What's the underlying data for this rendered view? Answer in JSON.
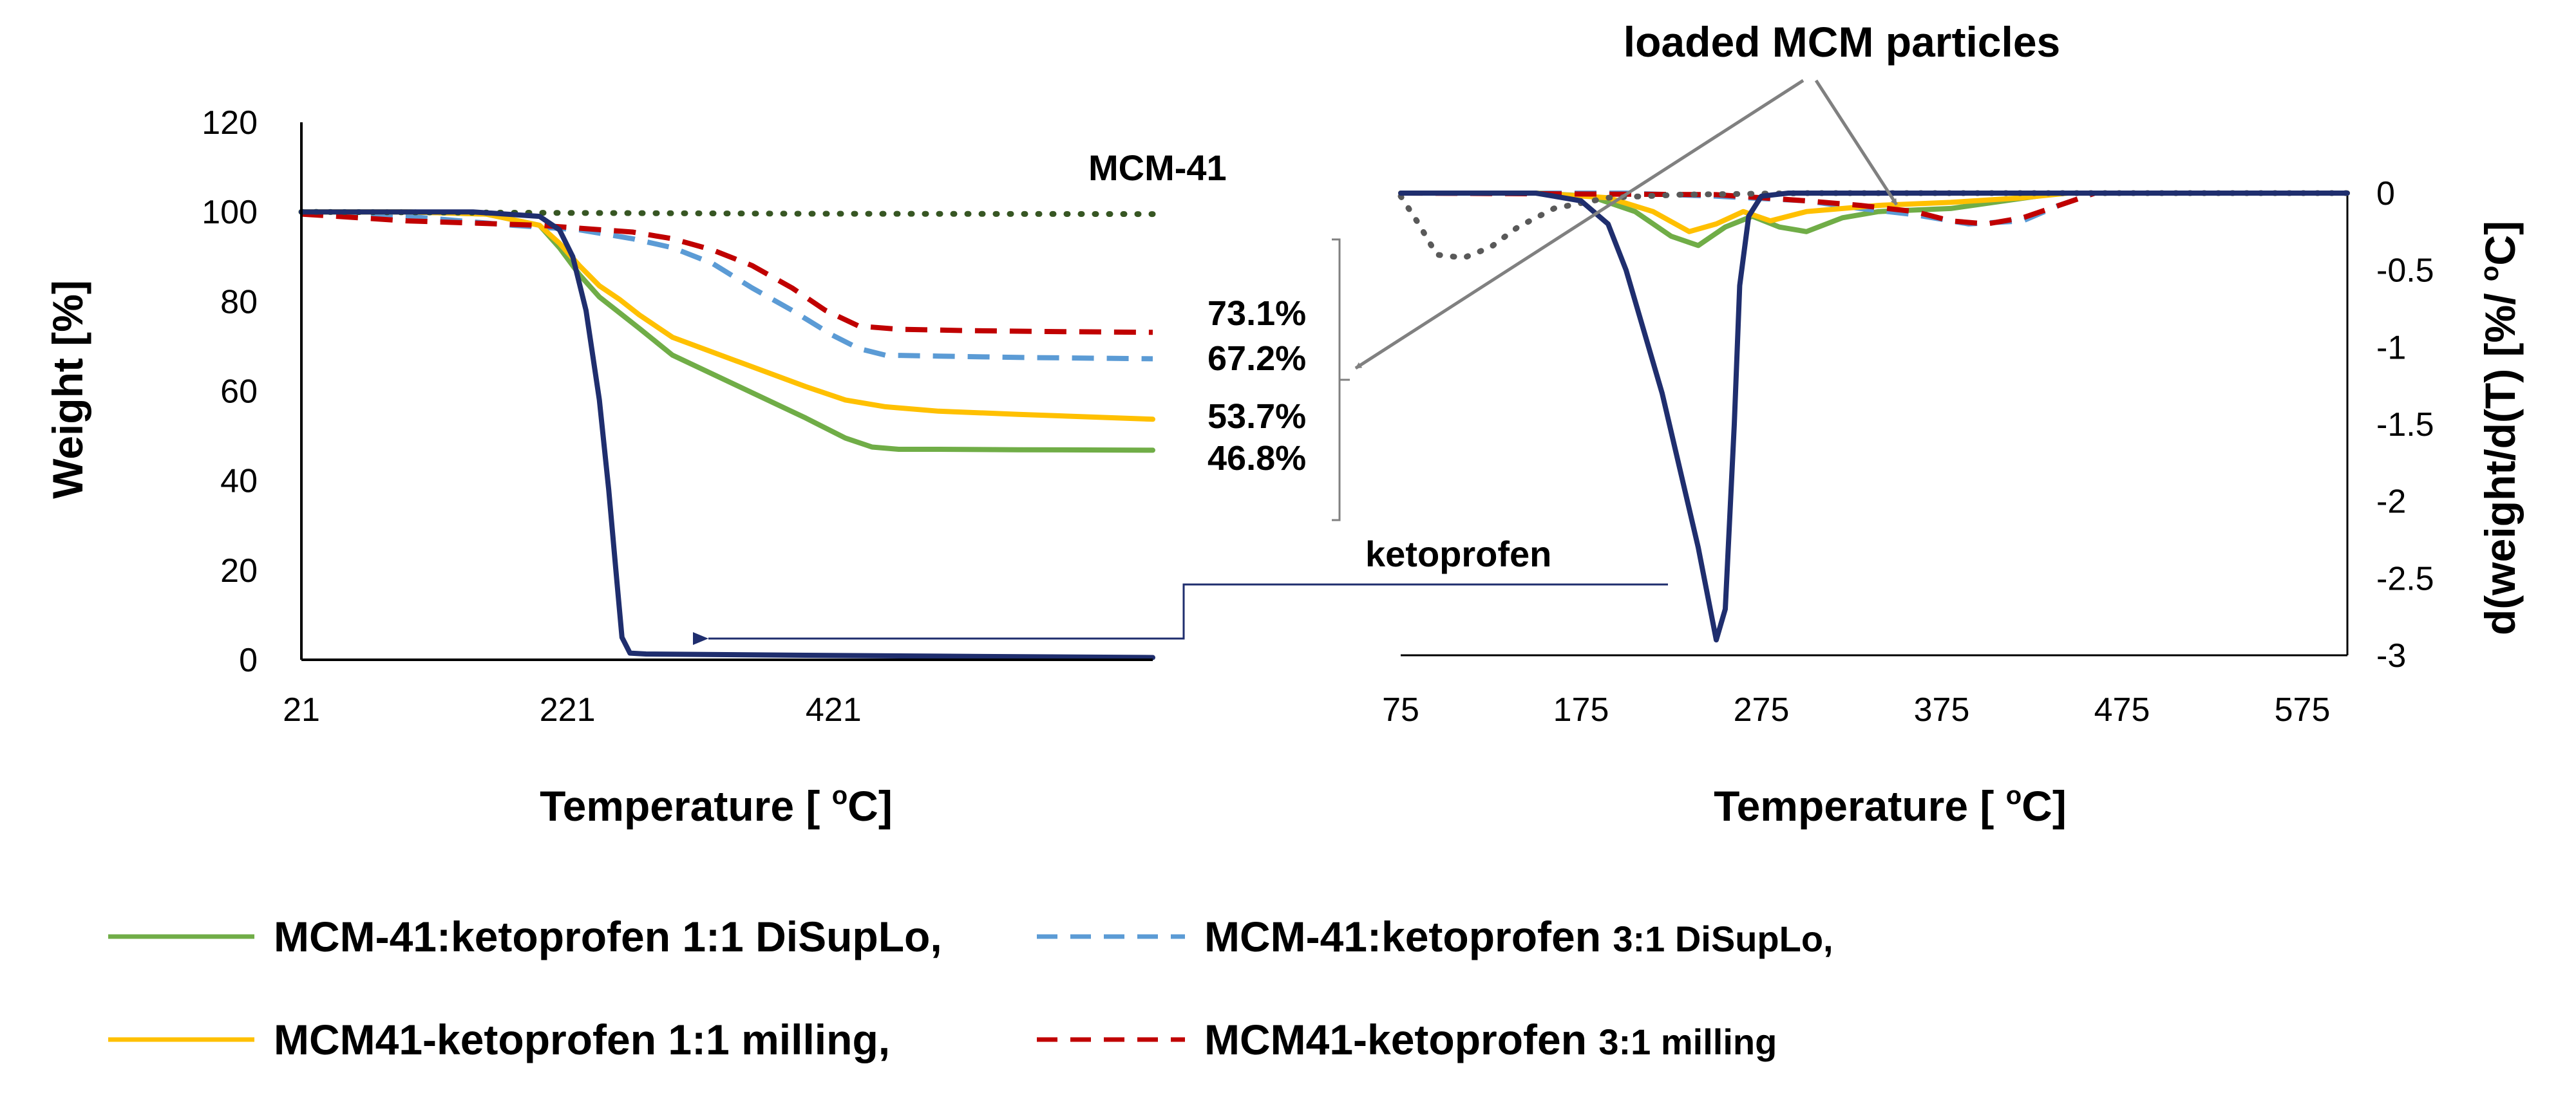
{
  "chart_data": [
    {
      "type": "line",
      "panel": "left",
      "xlabel": "Temperature [ oC]",
      "xlabel_main": "Temperature [ ",
      "xlabel_sup": "o",
      "xlabel_end": "C]",
      "ylabel": "Weight [%]",
      "xlim": [
        21,
        661
      ],
      "ylim": [
        0,
        120
      ],
      "xticks": [
        "21",
        "221",
        "421"
      ],
      "xtick_values": [
        21,
        221,
        421
      ],
      "yticks": [
        "0",
        "20",
        "40",
        "60",
        "80",
        "100",
        "120"
      ],
      "ytick_values": [
        0,
        20,
        40,
        60,
        80,
        100,
        120
      ],
      "series": [
        {
          "name": "MCM-41:ketoprofen 1:1 DiSupLo",
          "color": "#70ad47",
          "dash": "solid",
          "x": [
            21,
            100,
            160,
            200,
            215,
            230,
            245,
            260,
            275,
            300,
            350,
            400,
            430,
            450,
            470,
            500,
            560,
            661
          ],
          "y": [
            100,
            100,
            99.5,
            97,
            92,
            86,
            81,
            77.5,
            74,
            68,
            61,
            54,
            49.5,
            47.5,
            47,
            47,
            46.9,
            46.8
          ]
        },
        {
          "name": "MCM-41:ketoprofen 3:1 DiSupLo",
          "color": "#5b9bd5",
          "dash": "dashed",
          "x": [
            21,
            100,
            180,
            230,
            270,
            300,
            330,
            360,
            390,
            420,
            440,
            460,
            500,
            560,
            661
          ],
          "y": [
            100,
            99,
            97,
            96,
            94,
            92,
            88.5,
            83,
            78,
            72.5,
            69.5,
            68,
            67.8,
            67.5,
            67.2
          ]
        },
        {
          "name": "MCM41-ketoprofen 1:1 milling",
          "color": "#ffc000",
          "dash": "solid",
          "x": [
            21,
            100,
            160,
            200,
            215,
            230,
            245,
            260,
            275,
            300,
            350,
            400,
            430,
            460,
            500,
            560,
            661
          ],
          "y": [
            100,
            100,
            99.5,
            97,
            93,
            88,
            83.5,
            80.5,
            77,
            72,
            66.5,
            61,
            58,
            56.5,
            55.5,
            54.8,
            53.7
          ]
        },
        {
          "name": "MCM41-ketoprofen 3:1 milling",
          "color": "#c00000",
          "dash": "dashed",
          "x": [
            21,
            100,
            200,
            270,
            300,
            330,
            360,
            390,
            415,
            440,
            470,
            520,
            580,
            661
          ],
          "y": [
            99.5,
            98,
            97,
            95.5,
            94,
            91.5,
            88,
            83,
            78,
            74.5,
            73.8,
            73.5,
            73.3,
            73.1
          ]
        },
        {
          "name": "MCM-41",
          "color": "#375623",
          "dash": "dotted",
          "x": [
            21,
            200,
            400,
            661
          ],
          "y": [
            100,
            99.8,
            99.6,
            99.5
          ]
        },
        {
          "name": "ketoprofen",
          "color": "#1f2e6e",
          "dash": "solid",
          "x": [
            21,
            150,
            200,
            215,
            225,
            235,
            245,
            252,
            258,
            262,
            268,
            280,
            400,
            500,
            661
          ],
          "y": [
            100,
            100,
            99,
            96,
            90,
            78,
            58,
            38,
            18,
            5,
            1.5,
            1.3,
            1,
            0.8,
            0.5
          ]
        }
      ],
      "annotations": {
        "mcm41_label": "MCM-41",
        "ketoprofen_label": "ketoprofen",
        "residues": [
          "73.1%",
          "67.2%",
          "53.7%",
          "46.8%"
        ]
      }
    },
    {
      "type": "line",
      "panel": "right",
      "xlabel": "Temperature [ oC]",
      "xlabel_main": "Temperature [ ",
      "xlabel_sup": "o",
      "xlabel_end": "C]",
      "ylabel": "d(weight/d(T) [%/ oC]",
      "ylabel_main": "d(weight/d(T) [%/ ",
      "ylabel_sup": "o",
      "ylabel_end": "C]",
      "xlim": [
        75,
        600
      ],
      "ylim": [
        -3,
        0
      ],
      "xticks": [
        "75",
        "175",
        "275",
        "375",
        "475",
        "575"
      ],
      "xtick_values": [
        75,
        175,
        275,
        375,
        475,
        575
      ],
      "yticks": [
        "0",
        "-0.5",
        "-1",
        "-1.5",
        "-2",
        "-2.5",
        "-3"
      ],
      "ytick_values": [
        0,
        -0.5,
        -1,
        -1.5,
        -2,
        -2.5,
        -3
      ],
      "series": [
        {
          "name": "MCM-41:ketoprofen 1:1 DiSupLo",
          "color": "#70ad47",
          "dash": "solid",
          "x": [
            75,
            150,
            180,
            205,
            225,
            240,
            255,
            270,
            285,
            300,
            320,
            340,
            380,
            440,
            600
          ],
          "y": [
            0,
            0,
            -0.02,
            -0.12,
            -0.28,
            -0.34,
            -0.22,
            -0.15,
            -0.22,
            -0.25,
            -0.16,
            -0.12,
            -0.1,
            0,
            0
          ]
        },
        {
          "name": "MCM-41:ketoprofen 3:1 DiSupLo",
          "color": "#5b9bd5",
          "dash": "dashed",
          "x": [
            75,
            200,
            250,
            300,
            330,
            360,
            390,
            420,
            440,
            460,
            600
          ],
          "y": [
            0,
            0,
            -0.02,
            -0.05,
            -0.1,
            -0.14,
            -0.2,
            -0.18,
            -0.08,
            0,
            0
          ]
        },
        {
          "name": "MCM41-ketoprofen 1:1 milling",
          "color": "#ffc000",
          "dash": "solid",
          "x": [
            75,
            150,
            190,
            215,
            235,
            250,
            265,
            280,
            300,
            340,
            380,
            420,
            445,
            600
          ],
          "y": [
            0,
            0,
            -0.03,
            -0.12,
            -0.25,
            -0.2,
            -0.12,
            -0.18,
            -0.12,
            -0.08,
            -0.06,
            -0.03,
            0,
            0
          ]
        },
        {
          "name": "MCM41-ketoprofen 3:1 milling",
          "color": "#c00000",
          "dash": "dashed",
          "x": [
            75,
            250,
            300,
            330,
            360,
            380,
            400,
            420,
            440,
            460,
            600
          ],
          "y": [
            0,
            -0.01,
            -0.05,
            -0.08,
            -0.12,
            -0.18,
            -0.2,
            -0.16,
            -0.08,
            0,
            0
          ]
        },
        {
          "name": "MCM-41",
          "color": "#595959",
          "dash": "dotted",
          "x": [
            75,
            85,
            95,
            110,
            125,
            140,
            160,
            190,
            230,
            300,
            600
          ],
          "y": [
            -0.02,
            -0.2,
            -0.4,
            -0.42,
            -0.35,
            -0.22,
            -0.1,
            -0.03,
            -0.01,
            0,
            0
          ]
        },
        {
          "name": "ketoprofen",
          "color": "#1f2e6e",
          "dash": "solid",
          "x": [
            75,
            150,
            175,
            190,
            200,
            210,
            220,
            230,
            240,
            245,
            250,
            255,
            260,
            263,
            268,
            275,
            290,
            600
          ],
          "y": [
            0,
            0,
            -0.05,
            -0.2,
            -0.5,
            -0.9,
            -1.3,
            -1.8,
            -2.3,
            -2.6,
            -2.9,
            -2.7,
            -1.5,
            -0.6,
            -0.15,
            -0.02,
            0,
            0
          ]
        }
      ],
      "annotations": {
        "loaded_label": "loaded MCM particles"
      }
    }
  ],
  "legend": {
    "row1_a_main": "MCM-41:ketoprofen 1:1 DiSupLo,",
    "row1_b_main": "MCM-41:ketoprofen ",
    "row1_b_small": "3:1 DiSupLo,",
    "row2_a_main": "MCM41-ketoprofen 1:1 milling,",
    "row2_b_main": "MCM41-ketoprofen ",
    "row2_b_small": "3:1 milling"
  },
  "colors": {
    "green": "#70ad47",
    "blue": "#5b9bd5",
    "yellow": "#ffc000",
    "red": "#c00000",
    "navy": "#1f2e6e",
    "dark_green": "#375623",
    "gray": "#808080"
  }
}
